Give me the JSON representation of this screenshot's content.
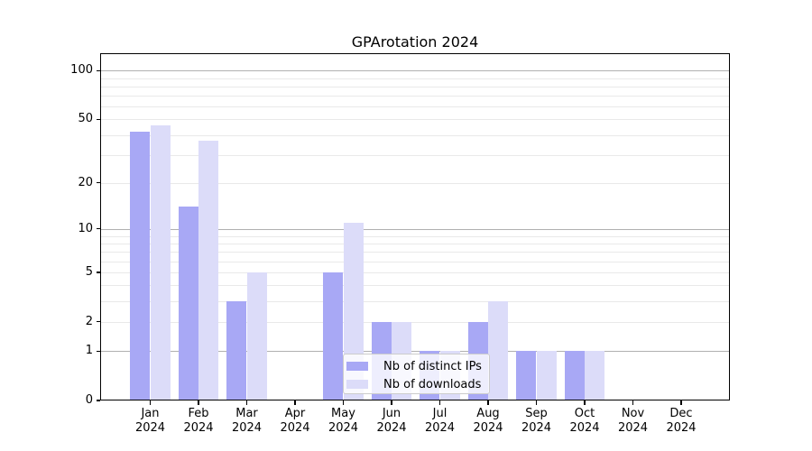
{
  "chart_data": {
    "type": "bar",
    "title": "GPArotation 2024",
    "x": [
      "Jan 2024",
      "Feb 2024",
      "Mar 2024",
      "Apr 2024",
      "May 2024",
      "Jun 2024",
      "Jul 2024",
      "Aug 2024",
      "Sep 2024",
      "Oct 2024",
      "Nov 2024",
      "Dec 2024"
    ],
    "series": [
      {
        "name": "Nb of distinct IPs",
        "color": "#a8a8f5",
        "values": [
          42,
          14,
          3,
          0,
          5,
          2,
          1,
          2,
          1,
          1,
          0,
          0
        ]
      },
      {
        "name": "Nb of downloads",
        "color": "#dcdcf9",
        "values": [
          46,
          37,
          5,
          0,
          11,
          2,
          1,
          3,
          1,
          1,
          0,
          0
        ]
      }
    ],
    "yscale": "log(value+1)",
    "ylim": [
      0,
      128
    ],
    "y_tick_values": [
      100,
      50,
      20,
      10,
      5,
      2,
      1,
      0
    ],
    "y_major_gridlines": [
      1,
      10,
      100
    ],
    "y_minor_gridlines": [
      2,
      3,
      4,
      5,
      6,
      7,
      8,
      9,
      20,
      30,
      40,
      50,
      60,
      70,
      80,
      90
    ],
    "grid": true,
    "legend_position": "lower center",
    "colors": {
      "axis": "#000000",
      "major_grid": "#b0b0b0",
      "minor_grid": "#e9e9e9",
      "background": "#ffffff"
    }
  }
}
